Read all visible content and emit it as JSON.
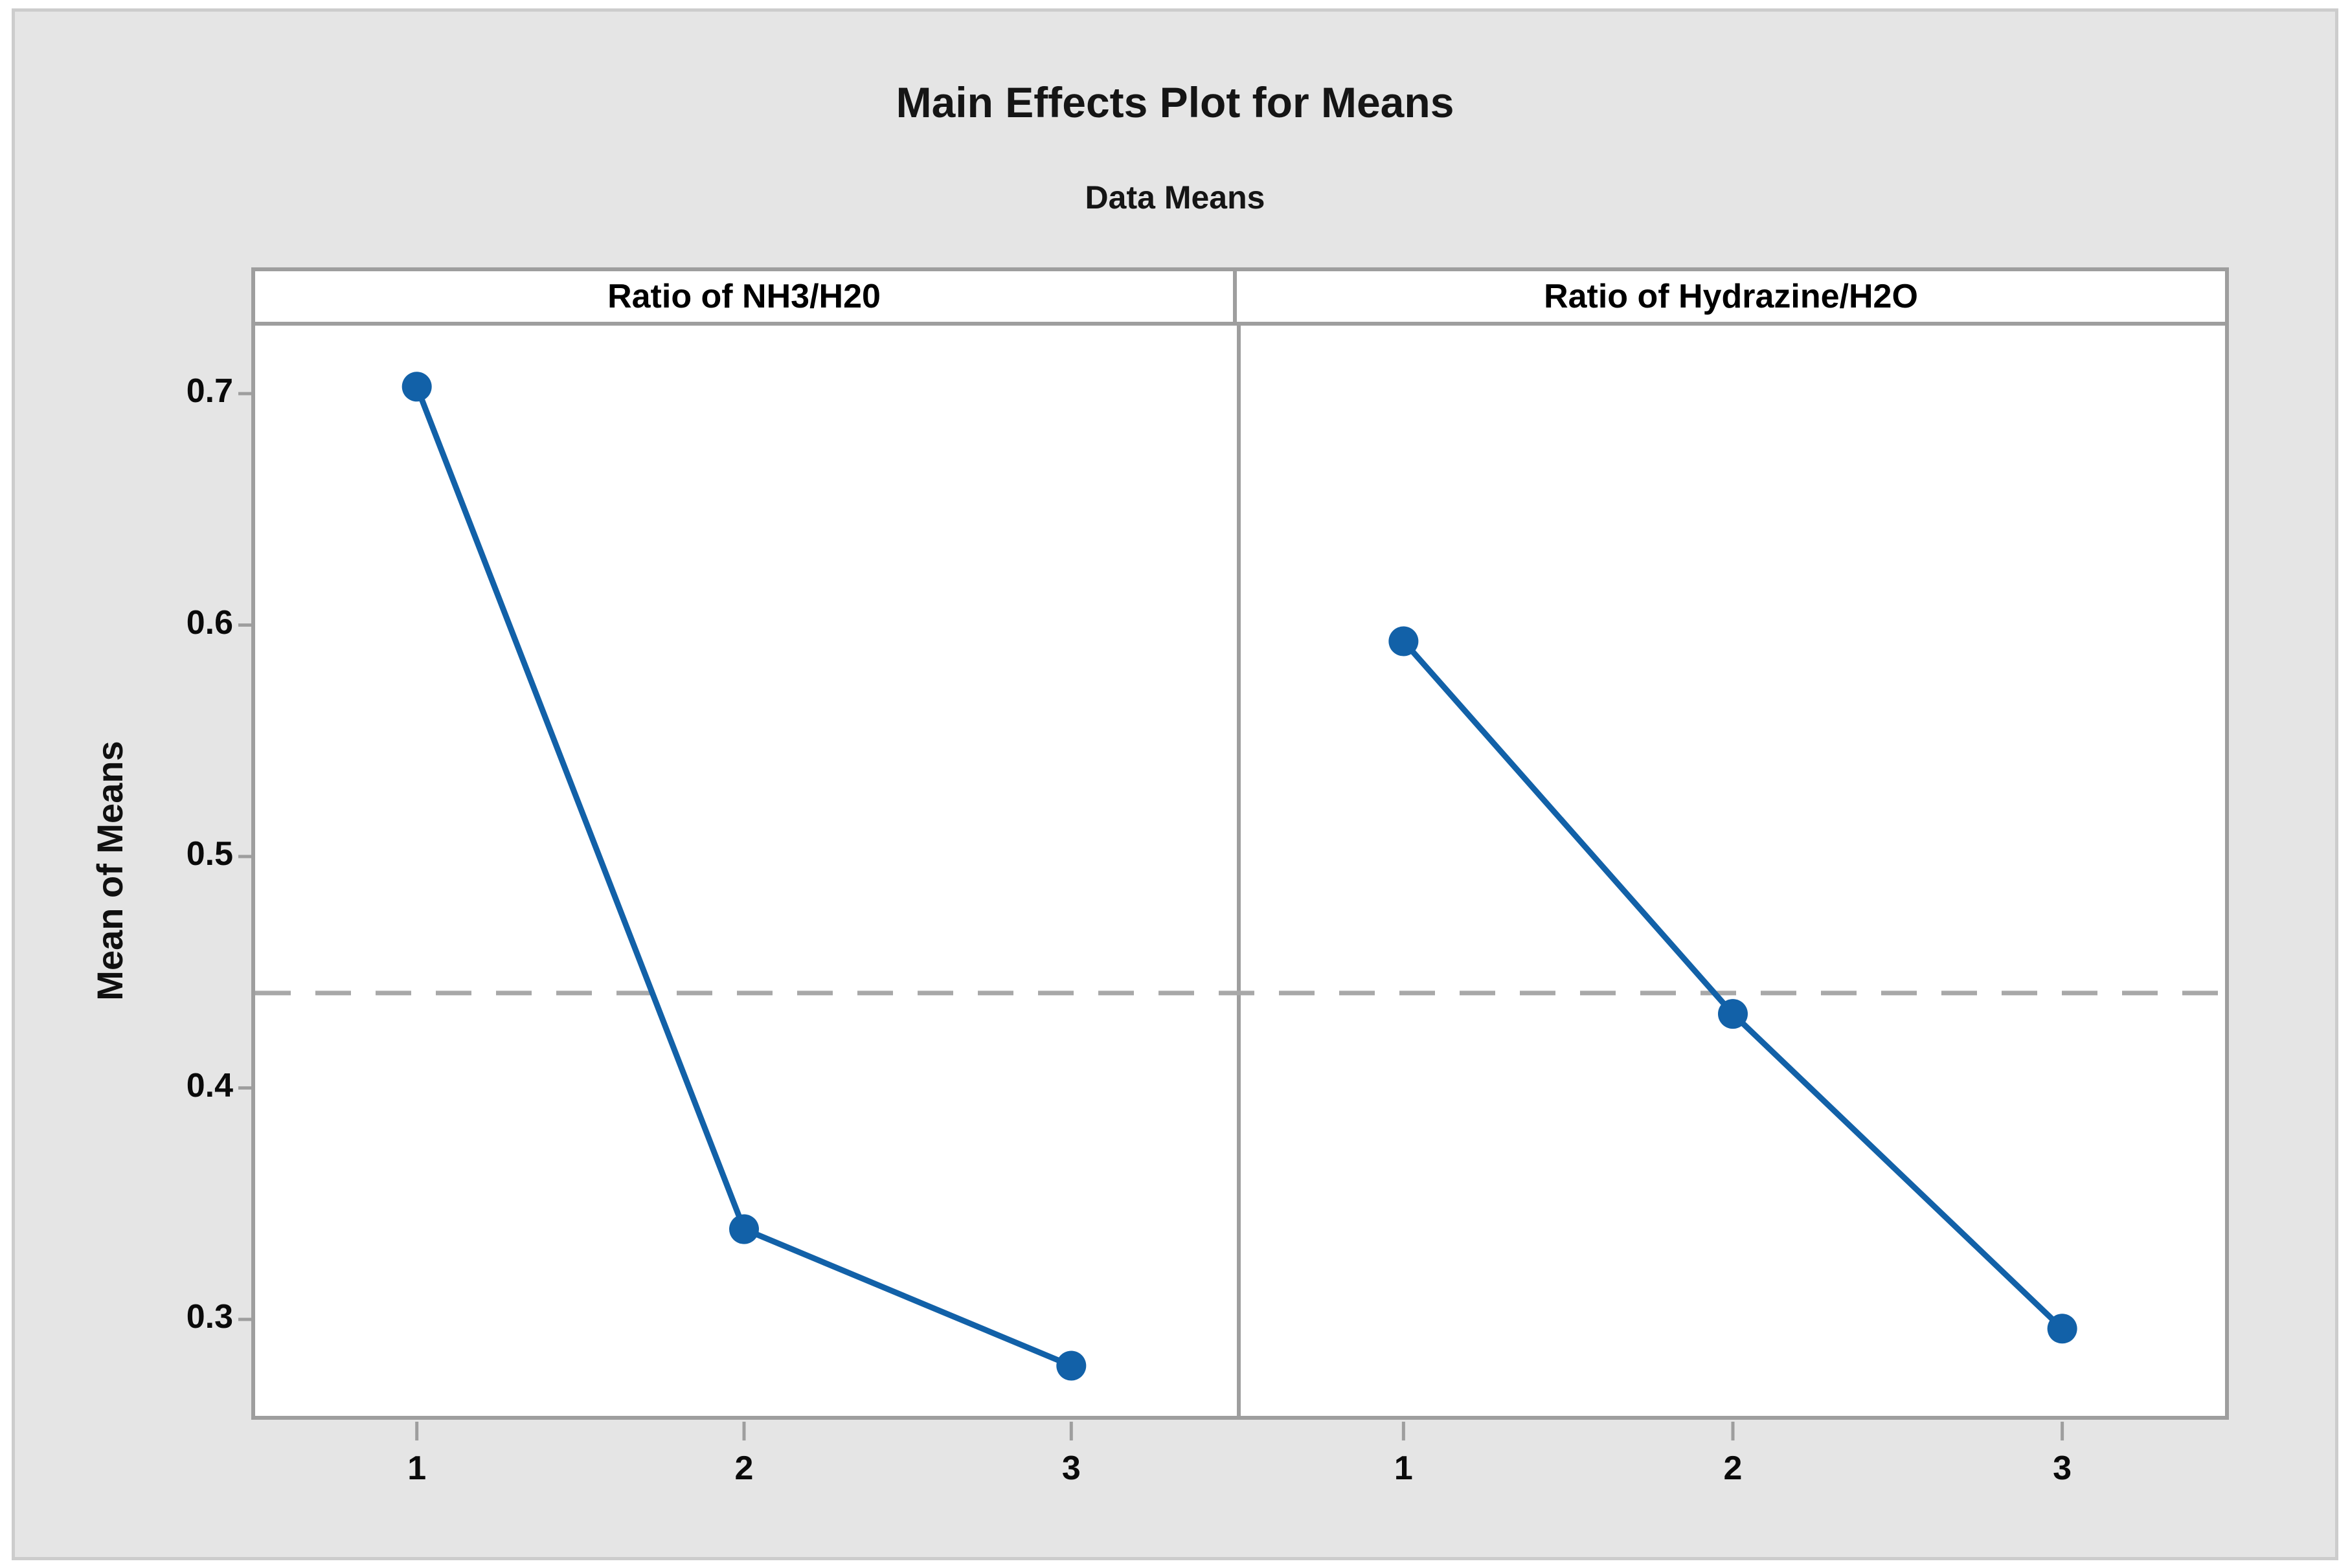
{
  "figure": {
    "title": "Main Effects Plot for Means",
    "subtitle": "Data Means",
    "y_axis_label": "Mean of Means"
  },
  "chart_data": {
    "type": "line",
    "title": "Main Effects Plot for Means",
    "subtitle": "Data Means",
    "ylabel": "Mean of Means",
    "panels": [
      {
        "label": "Ratio of NH3/H20",
        "categories": [
          "1",
          "2",
          "3"
        ],
        "values": [
          0.703,
          0.339,
          0.28
        ]
      },
      {
        "label": "Ratio of Hydrazine/H2O",
        "categories": [
          "1",
          "2",
          "3"
        ],
        "values": [
          0.593,
          0.432,
          0.296
        ]
      }
    ],
    "reference_line_value": 0.441,
    "reference_line_style": "dashed",
    "y_ticks": [
      "0.7",
      "0.6",
      "0.5",
      "0.4",
      "0.3"
    ],
    "ylim": [
      0.257,
      0.729
    ],
    "grid": "off",
    "legend": "none",
    "colors": {
      "series": "#1261a8",
      "reference_line": "#a8a8a8",
      "panel_border": "#9e9e9e",
      "plot_background": "#ffffff",
      "figure_background": "#e5e5e5"
    }
  }
}
